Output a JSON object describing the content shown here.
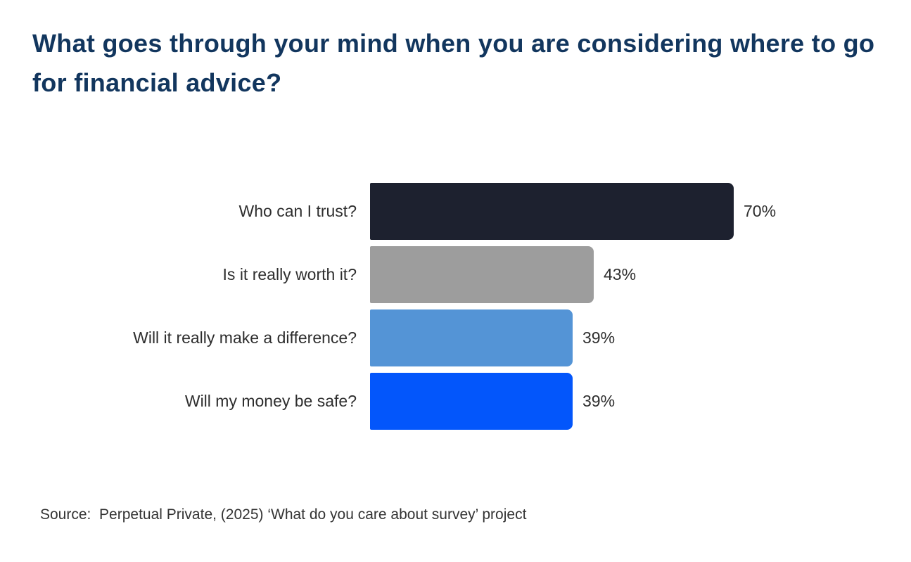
{
  "chart_data": {
    "type": "bar",
    "orientation": "horizontal",
    "title": "What goes through your mind when you are considering where to go for financial advice?",
    "categories": [
      "Who can I trust?",
      "Is it really worth it?",
      "Will it really make a difference?",
      "Will my money be safe?"
    ],
    "values": [
      70,
      43,
      39,
      39
    ],
    "value_labels": [
      "70%",
      "43%",
      "39%",
      "39%"
    ],
    "bar_colors": [
      "#1D212F",
      "#9D9D9D",
      "#5494D6",
      "#0356FB"
    ],
    "xlim": [
      0,
      100
    ],
    "grid": false,
    "legend": false,
    "source": "Source:  Perpetual Private, (2025) ‘What do you care about survey’ project"
  },
  "colors": {
    "title": "#12365E",
    "label_text": "#2E2E2E",
    "source_text": "#333333",
    "background": "#FFFFFF"
  }
}
